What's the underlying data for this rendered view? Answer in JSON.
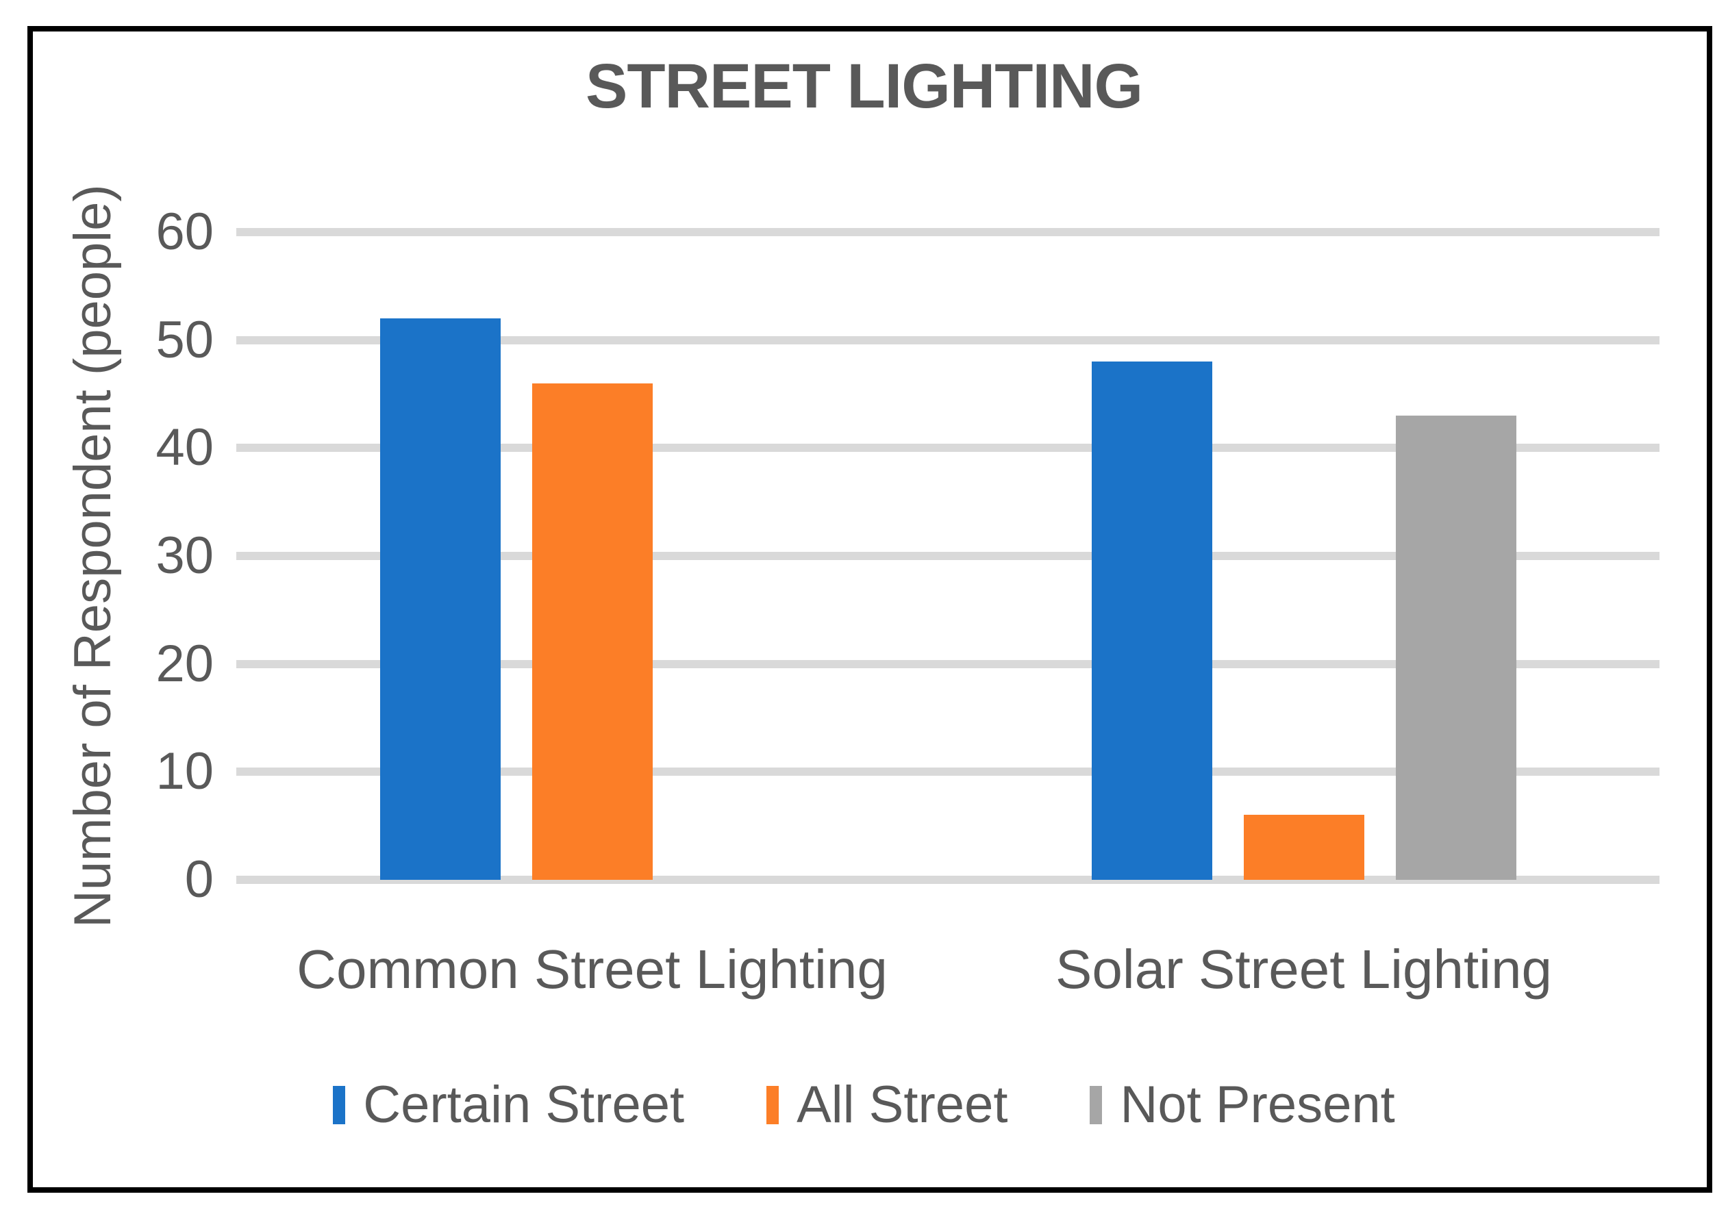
{
  "chart_data": {
    "type": "bar",
    "title": "STREET LIGHTING",
    "ylabel": "Number of Respondent (people)",
    "xlabel": "",
    "categories": [
      "Common Street Lighting",
      "Solar Street Lighting"
    ],
    "series": [
      {
        "name": "Certain Street",
        "color": "#1B73C8",
        "values": [
          52,
          48
        ]
      },
      {
        "name": "All Street",
        "color": "#FC7E27",
        "values": [
          46,
          6
        ]
      },
      {
        "name": "Not Present",
        "color": "#A6A6A6",
        "values": [
          0,
          43
        ]
      }
    ],
    "y_ticks": [
      60,
      50,
      40,
      30,
      20,
      10,
      0
    ],
    "ylim": [
      0,
      60
    ],
    "grid": true,
    "legend_position": "bottom",
    "text_color": "#595959",
    "gridline_color": "#D9D9D9",
    "frame_border_color": "#000000",
    "background_color": "#FFFFFF"
  }
}
